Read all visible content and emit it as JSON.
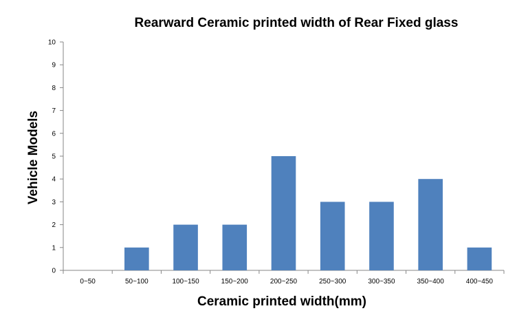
{
  "chart_data": {
    "type": "bar",
    "title": "Rearward Ceramic printed width of Rear Fixed glass",
    "xlabel": "Ceramic printed width(mm)",
    "ylabel": "Vehicle Models",
    "categories": [
      "0~50",
      "50~100",
      "100~150",
      "150~200",
      "200~250",
      "250~300",
      "300~350",
      "350~400",
      "400~450"
    ],
    "values": [
      0,
      1,
      2,
      2,
      5,
      3,
      3,
      4,
      1
    ],
    "ylim": [
      0,
      10
    ],
    "yticks": [
      "0",
      "1",
      "2",
      "3",
      "4",
      "5",
      "6",
      "7",
      "8",
      "9",
      "10"
    ],
    "grid": false,
    "legend": "none",
    "bar_color": "#4F81BD"
  }
}
